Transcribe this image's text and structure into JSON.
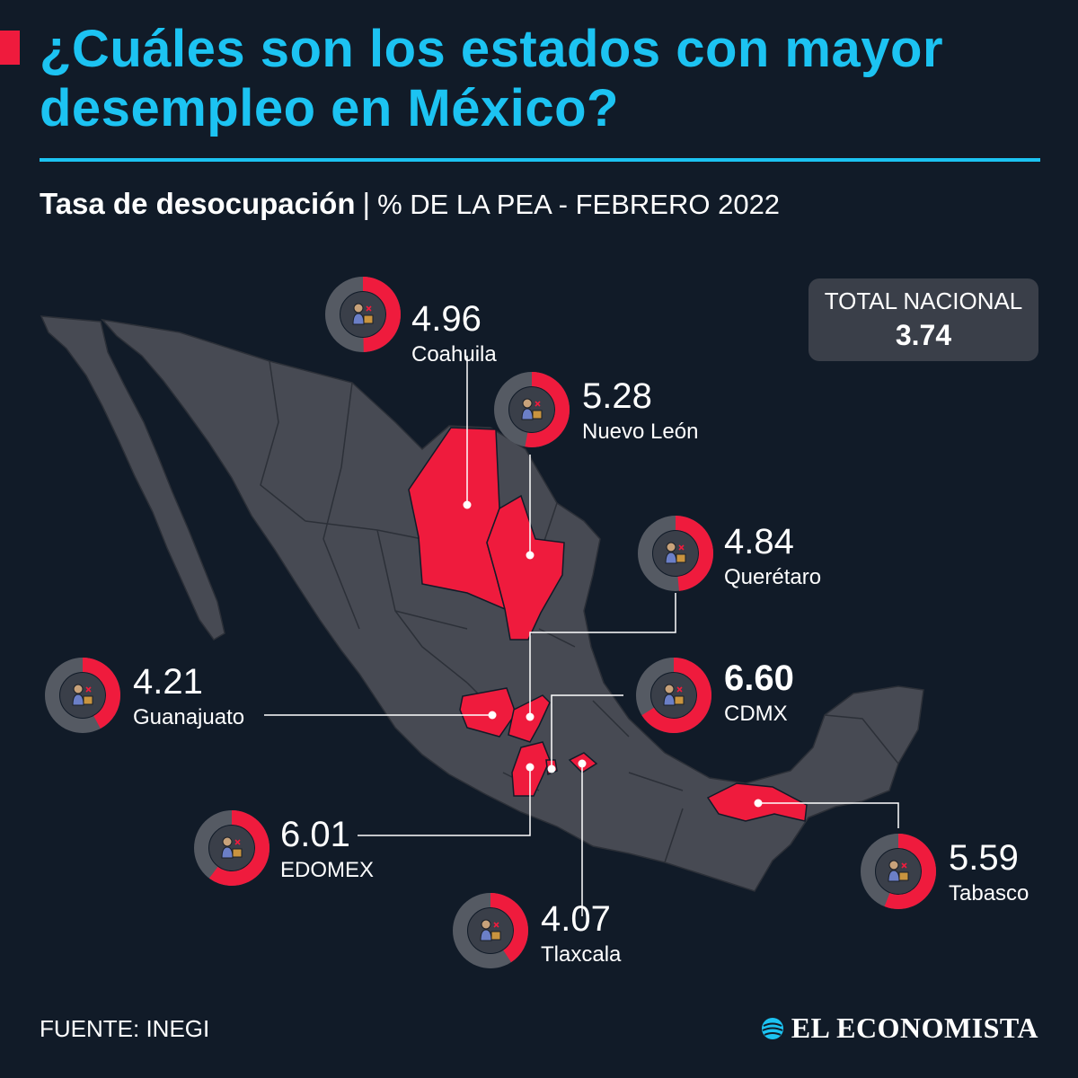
{
  "header": {
    "title_line1": "¿Cuáles son los estados con mayor",
    "title_line2": "desempleo en México?",
    "subtitle_bold": "Tasa de desocupación",
    "subtitle_sep": "|",
    "subtitle_unit": "% DE LA PEA - FEBRERO 2022"
  },
  "total": {
    "label": "TOTAL NACIONAL",
    "value": "3.74"
  },
  "footer": {
    "source": "FUENTE: INEGI",
    "brand": "EL ECONOMISTA"
  },
  "colors": {
    "accent": "#1cc3f2",
    "highlight": "#ef1b3d",
    "map_fill": "#474a53",
    "background": "#111b28",
    "ring_track": "#555a63"
  },
  "chart_data": {
    "type": "choropleth-map",
    "title": "Tasa de desocupación",
    "unit": "% DE LA PEA - FEBRERO 2022",
    "ring_scale_max": 10,
    "national_total": 3.74,
    "states": [
      {
        "name": "Coahuila",
        "value": 4.96
      },
      {
        "name": "Nuevo León",
        "value": 5.28
      },
      {
        "name": "Querétaro",
        "value": 4.84
      },
      {
        "name": "Guanajuato",
        "value": 4.21
      },
      {
        "name": "CDMX",
        "value": 6.6,
        "emphasis": true
      },
      {
        "name": "EDOMEX",
        "value": 6.01
      },
      {
        "name": "Tlaxcala",
        "value": 4.07
      },
      {
        "name": "Tabasco",
        "value": 5.59
      }
    ]
  }
}
